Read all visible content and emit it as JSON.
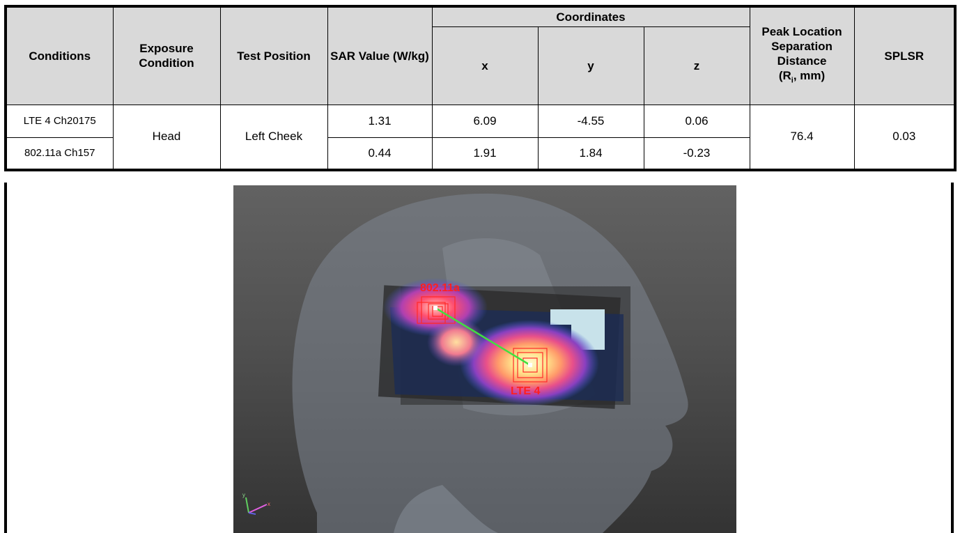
{
  "table": {
    "headers": {
      "conditions": "Conditions",
      "exposure_condition": "Exposure Condition",
      "test_position": "Test Position",
      "sar_value": "SAR Value (W/kg)",
      "coordinates": "Coordinates",
      "x": "x",
      "y": "y",
      "z": "z",
      "peak_location": "Peak Location Separation Distance",
      "peak_location_unit_r": "(R",
      "peak_location_unit_sub": "i",
      "peak_location_unit_rest": ", mm)",
      "splsr": "SPLSR"
    },
    "rows": [
      {
        "condition": "LTE 4 Ch20175",
        "sar": "1.31",
        "x": "6.09",
        "y": "-4.55",
        "z": "0.06"
      },
      {
        "condition": "802.11a Ch157",
        "sar": "0.44",
        "x": "1.91",
        "y": "1.84",
        "z": "-0.23"
      }
    ],
    "exposure_condition": "Head",
    "test_position": "Left Cheek",
    "separation_distance": "76.4",
    "splsr": "0.03"
  },
  "image": {
    "label_wifi": "802.11a",
    "label_lte": "LTE 4",
    "axis_y": "y",
    "axis_x": "x"
  }
}
